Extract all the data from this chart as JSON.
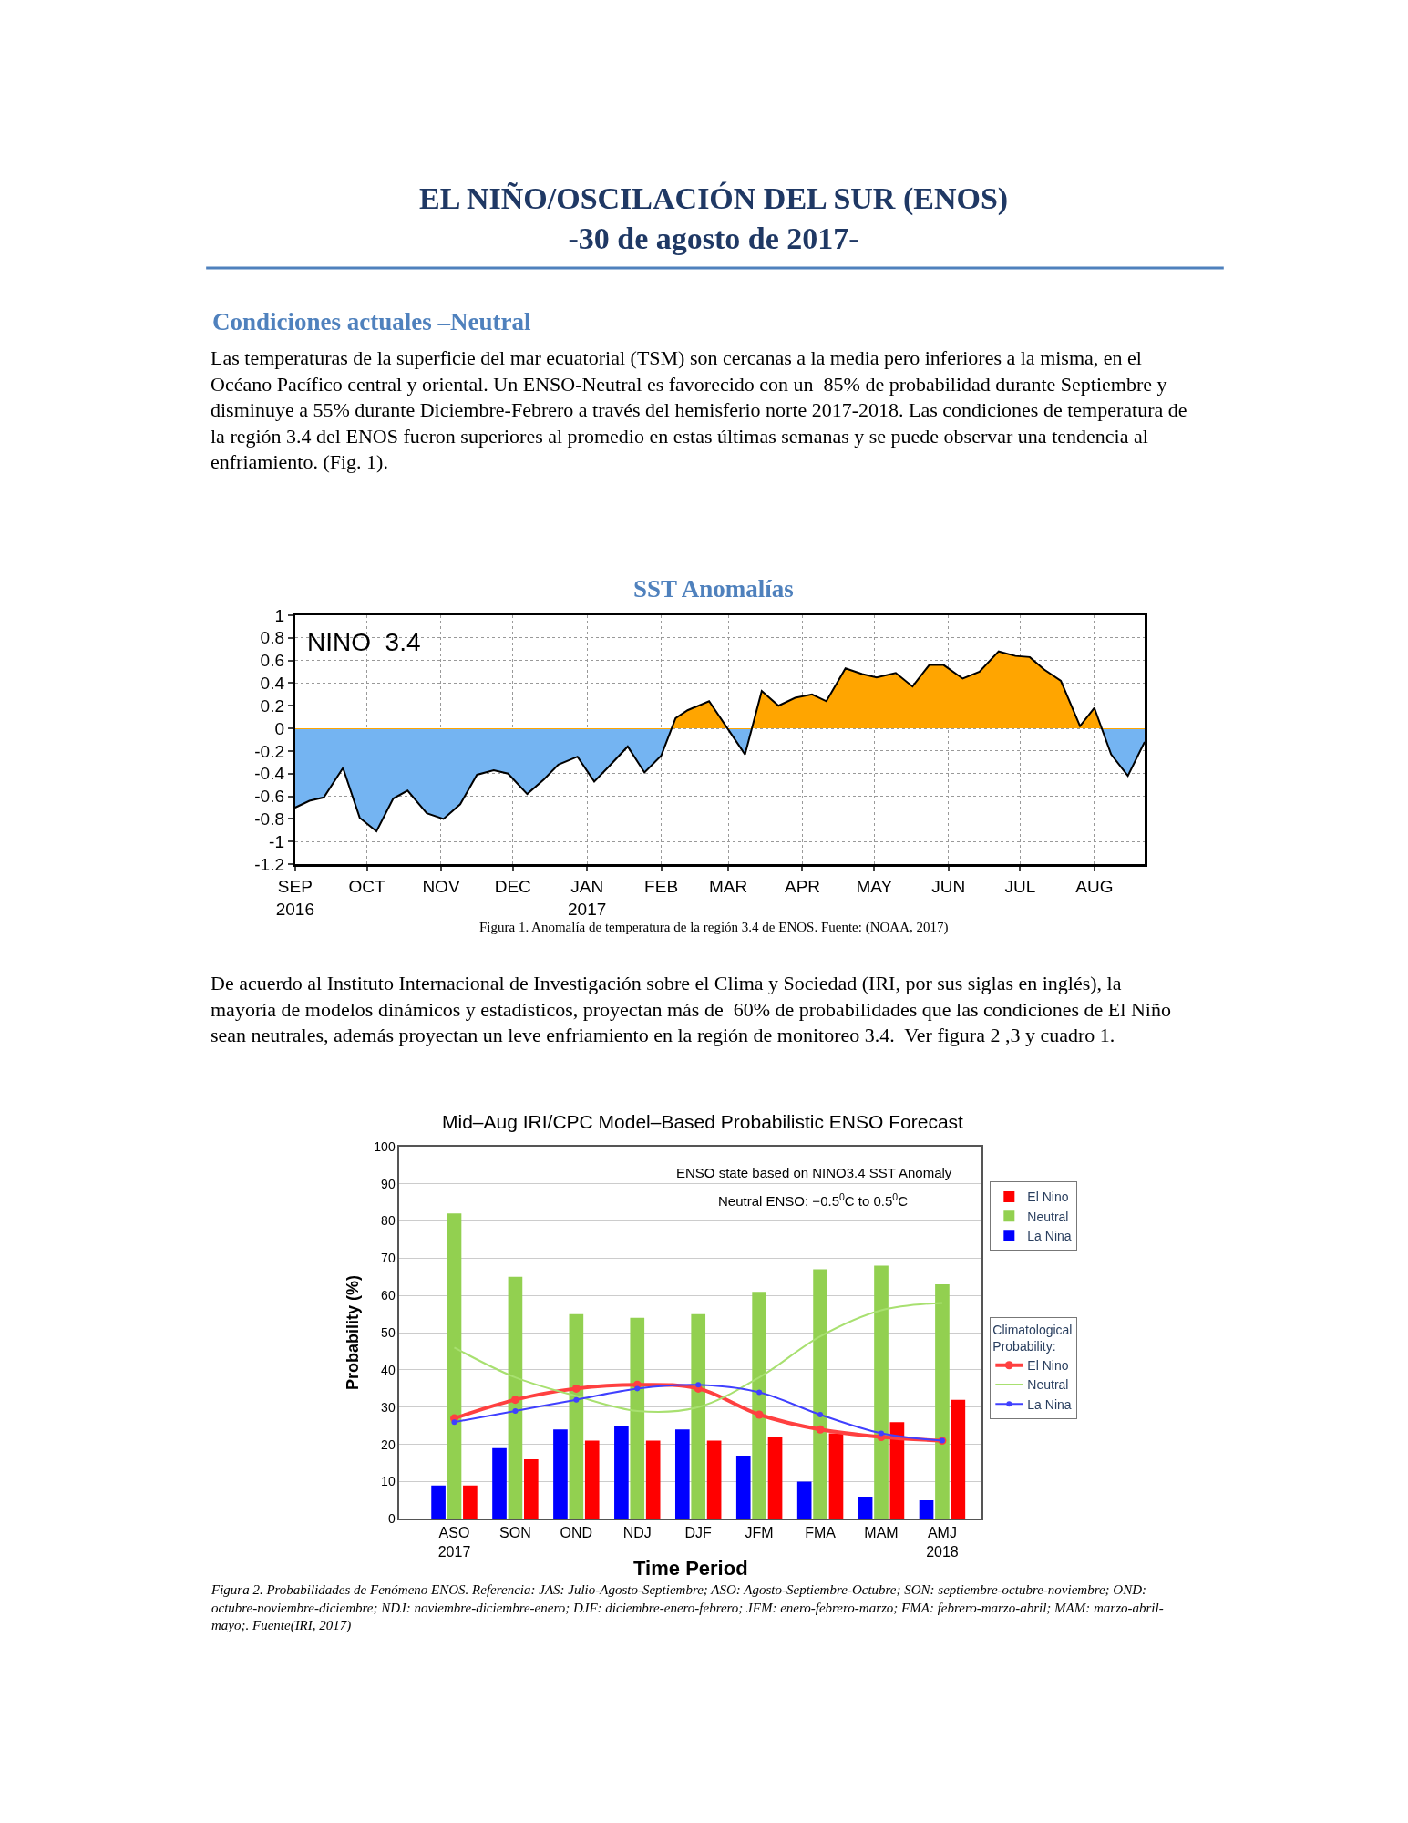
{
  "chart_data": [
    {
      "type": "area",
      "title": "SST Anomalías",
      "annotations": [
        "EL NIÑO/OSCILACIÓN DEL SUR (ENOS)\n-30 de agosto de 2017-",
        "Condiciones actuales –Neutral",
        "Las temperaturas de la superficie del mar ecuatorial (TSM) son cercanas a la media pero inferiores a la misma, en el Océano Pacífico central y oriental. Un ENSO-Neutral es favorecido con un  85% de probabilidad durante Septiembre y disminuye a 55% durante Diciembre-Febrero a través del hemisferio norte 2017-2018. Las condiciones de temperatura de la región 3.4 del ENOS fueron superiores al promedio en estas últimas semanas y se puede observar una tendencia al enfriamiento. (Fig. 1).",
        "NINO  3.4",
        "Figura 1. Anomalía de temperatura de la región 3.4 de ENOS. Fuente: (NOAA, 2017)"
      ],
      "x": [
        "2016-09-01",
        "2016-09-07",
        "2016-09-13",
        "2016-09-21",
        "2016-09-28",
        "2016-10-05",
        "2016-10-12",
        "2016-10-18",
        "2016-10-26",
        "2016-11-02",
        "2016-11-09",
        "2016-11-16",
        "2016-11-23",
        "2016-11-29",
        "2016-12-07",
        "2016-12-14",
        "2016-12-20",
        "2016-12-28",
        "2017-01-04",
        "2017-01-10",
        "2017-01-18",
        "2017-01-25",
        "2017-02-01",
        "2017-02-07",
        "2017-02-12",
        "2017-02-21",
        "2017-03-08",
        "2017-03-15",
        "2017-03-22",
        "2017-03-29",
        "2017-04-05",
        "2017-04-11",
        "2017-04-19",
        "2017-04-26",
        "2017-05-02",
        "2017-05-10",
        "2017-05-17",
        "2017-05-24",
        "2017-05-30",
        "2017-06-07",
        "2017-06-14",
        "2017-06-22",
        "2017-06-29",
        "2017-07-05",
        "2017-07-11",
        "2017-07-18",
        "2017-07-26",
        "2017-08-01",
        "2017-08-08",
        "2017-08-15",
        "2017-08-22"
      ],
      "values": [
        -0.7,
        -0.64,
        -0.61,
        -0.35,
        -0.79,
        -0.91,
        -0.62,
        -0.55,
        -0.75,
        -0.8,
        -0.67,
        -0.41,
        -0.37,
        -0.4,
        -0.58,
        -0.45,
        -0.32,
        -0.25,
        -0.47,
        -0.34,
        -0.16,
        -0.39,
        -0.24,
        0.09,
        0.16,
        0.24,
        -0.23,
        0.33,
        0.2,
        0.27,
        0.3,
        0.24,
        0.53,
        0.48,
        0.45,
        0.49,
        0.37,
        0.56,
        0.56,
        0.44,
        0.5,
        0.68,
        0.64,
        0.63,
        0.52,
        0.42,
        0.02,
        0.18,
        -0.23,
        -0.42,
        -0.12
      ],
      "colors": [
        "#74b4f2",
        "#74b4f2",
        "#74b4f2",
        "#74b4f2",
        "#74b4f2",
        "#74b4f2",
        "#74b4f2",
        "#74b4f2",
        "#74b4f2",
        "#74b4f2",
        "#74b4f2",
        "#74b4f2",
        "#74b4f2",
        "#74b4f2",
        "#74b4f2",
        "#74b4f2",
        "#74b4f2",
        "#74b4f2",
        "#74b4f2",
        "#74b4f2",
        "#74b4f2",
        "#74b4f2",
        "#74b4f2",
        "#ffa500",
        "#ffa500",
        "#ffa500",
        "#74b4f2",
        "#ffa500",
        "#ffa500",
        "#ffa500",
        "#ffa500",
        "#ffa500",
        "#ffa500",
        "#ffa500",
        "#ffa500",
        "#ffa500",
        "#ffa500",
        "#ffa500",
        "#ffa500",
        "#ffa500",
        "#ffa500",
        "#ffa500",
        "#ffa500",
        "#ffa500",
        "#ffa500",
        "#ffa500",
        "#ffa500",
        "#ffa500",
        "#74b4f2",
        "#74b4f2",
        "#74b4f2"
      ],
      "xlim": [
        "2016-09-01",
        "2017-08-22"
      ],
      "xticks": [
        {
          "value": "2016-09-01",
          "label": "SEP\n2016"
        },
        {
          "value": "2016-10-01",
          "label": "OCT"
        },
        {
          "value": "2016-11-01",
          "label": "NOV"
        },
        {
          "value": "2016-12-01",
          "label": "DEC"
        },
        {
          "value": "2017-01-01",
          "label": "JAN\n2017"
        },
        {
          "value": "2017-02-01",
          "label": "FEB"
        },
        {
          "value": "2017-03-01",
          "label": "MAR"
        },
        {
          "value": "2017-04-01",
          "label": "APR"
        },
        {
          "value": "2017-05-01",
          "label": "MAY"
        },
        {
          "value": "2017-06-01",
          "label": "JUN"
        },
        {
          "value": "2017-07-01",
          "label": "JUL"
        },
        {
          "value": "2017-08-01",
          "label": "AUG"
        }
      ],
      "ylim": [
        -1.2,
        1
      ],
      "yticks": [
        {
          "value": -1.2,
          "label": "-1.2"
        },
        -1,
        {
          "value": -0.8,
          "label": "-0.8"
        },
        {
          "value": -0.6,
          "label": "-0.6"
        },
        {
          "value": -0.4,
          "label": "-0.4"
        },
        {
          "value": -0.2,
          "label": "-0.2"
        },
        0,
        0.2,
        0.4,
        0.6,
        0.8,
        1
      ],
      "grid": true
    },
    {
      "type": "bar",
      "title": "Mid–Aug IRI/CPC Model–Based Probabilistic ENSO Forecast",
      "xlabel": "Time Period",
      "ylabel": "Probability (%)",
      "legend_title": "Climatological\nProbability:",
      "annotations": [
        "De acuerdo al Instituto Internacional de Investigación sobre el Clima y Sociedad (IRI, por sus siglas en inglés), la mayoría de modelos dinámicos y estadísticos, proyectan más de  60% de probabilidades que las condiciones de El Niño sean neutrales, además proyectan un leve enfriamiento en la región de monitoreo 3.4.  Ver figura 2 ,3 y cuadro 1.",
        "ENSO state based on NINO3.4 SST Anomaly",
        "Neutral ENSO: −0.5$^{0}$C to 0.5$^{0}$C",
        "Figura 2. Probabilidades de Fenómeno ENOS. Referencia: JAS: Julio-Agosto-Septiembre; ASO: Agosto-Septiembre-Octubre; SON: septiembre-octubre-noviembre; OND: octubre-noviembre-diciembre; NDJ: noviembre-diciembre-enero; DJF: diciembre-enero-febrero; JFM: enero-febrero-marzo; FMA: febrero-marzo-abril; MAM: marzo-abril-mayo;. Fuente(IRI, 2017)"
      ],
      "categories": [
        "ASO\n2017",
        "SON",
        "OND",
        "NDJ",
        "DJF",
        "JFM",
        "FMA",
        "MAM",
        "AMJ\n2018"
      ],
      "series": [
        {
          "name": "La Nina",
          "color": "#0000ff",
          "values": [
            9,
            19,
            24,
            25,
            24,
            17,
            10,
            6,
            5
          ]
        },
        {
          "name": "Neutral",
          "color": "#92d050",
          "values": [
            82,
            65,
            55,
            54,
            55,
            61,
            67,
            68,
            63
          ]
        },
        {
          "name": "El Nino",
          "color": "#ff0000",
          "values": [
            9,
            16,
            21,
            21,
            21,
            22,
            23,
            26,
            32
          ]
        },
        {
          "name": "El Nino",
          "type": "line",
          "marker": "circle",
          "color": "#ff4040",
          "values": [
            27,
            32,
            35,
            36,
            35,
            28,
            24,
            22,
            21
          ]
        },
        {
          "name": "Neutral",
          "type": "line",
          "marker": "none",
          "color": "#a8e070",
          "values": [
            46,
            38,
            33,
            29,
            30,
            38,
            49,
            56,
            58
          ]
        },
        {
          "name": "La Nina",
          "type": "line",
          "marker": "circle",
          "color": "#4040ff",
          "values": [
            26,
            29,
            32,
            35,
            36,
            34,
            28,
            23,
            21
          ]
        }
      ],
      "ylim": [
        0,
        100
      ],
      "yticks": [
        0,
        10,
        20,
        30,
        40,
        50,
        60,
        70,
        80,
        90,
        100
      ],
      "grid": "y",
      "legend": "right"
    }
  ]
}
